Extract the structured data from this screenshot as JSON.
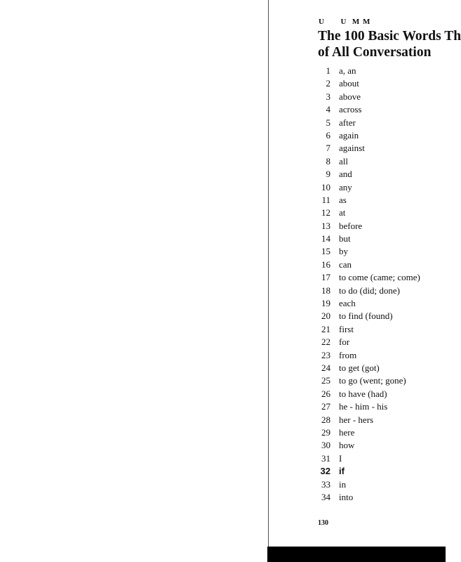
{
  "header": {
    "running_head": "U      U  M M"
  },
  "title": {
    "line1": "The 100 Basic Words Th",
    "line2": "of All  Conversation"
  },
  "words": [
    {
      "n": "1",
      "w": "a, an"
    },
    {
      "n": "2",
      "w": "about"
    },
    {
      "n": "3",
      "w": "above"
    },
    {
      "n": "4",
      "w": "across"
    },
    {
      "n": "5",
      "w": "after"
    },
    {
      "n": "6",
      "w": "again"
    },
    {
      "n": "7",
      "w": "against"
    },
    {
      "n": "8",
      "w": "all"
    },
    {
      "n": "9",
      "w": "and"
    },
    {
      "n": "10",
      "w": "any"
    },
    {
      "n": "11",
      "w": "as"
    },
    {
      "n": "12",
      "w": "at"
    },
    {
      "n": "13",
      "w": "before"
    },
    {
      "n": "14",
      "w": "but"
    },
    {
      "n": "15",
      "w": "by"
    },
    {
      "n": "16",
      "w": "can"
    },
    {
      "n": "17",
      "w": "to come (came; come)"
    },
    {
      "n": "18",
      "w": "to do (did; done)"
    },
    {
      "n": "19",
      "w": "each"
    },
    {
      "n": "20",
      "w": "to find (found)"
    },
    {
      "n": "21",
      "w": "first"
    },
    {
      "n": "22",
      "w": "for"
    },
    {
      "n": "23",
      "w": "from"
    },
    {
      "n": "24",
      "w": "to get (got)"
    },
    {
      "n": "25",
      "w": "to go (went; gone)"
    },
    {
      "n": "26",
      "w": "to have (had)"
    },
    {
      "n": "27",
      "w": "he - him - his"
    },
    {
      "n": "28",
      "w": "her - hers"
    },
    {
      "n": "29",
      "w": "here"
    },
    {
      "n": "30",
      "w": "how"
    },
    {
      "n": "31",
      "w": "I"
    },
    {
      "n": "32",
      "w": "if",
      "bold": true
    },
    {
      "n": "33",
      "w": "in"
    },
    {
      "n": "34",
      "w": "into"
    }
  ],
  "footer": {
    "page_number": "130"
  }
}
